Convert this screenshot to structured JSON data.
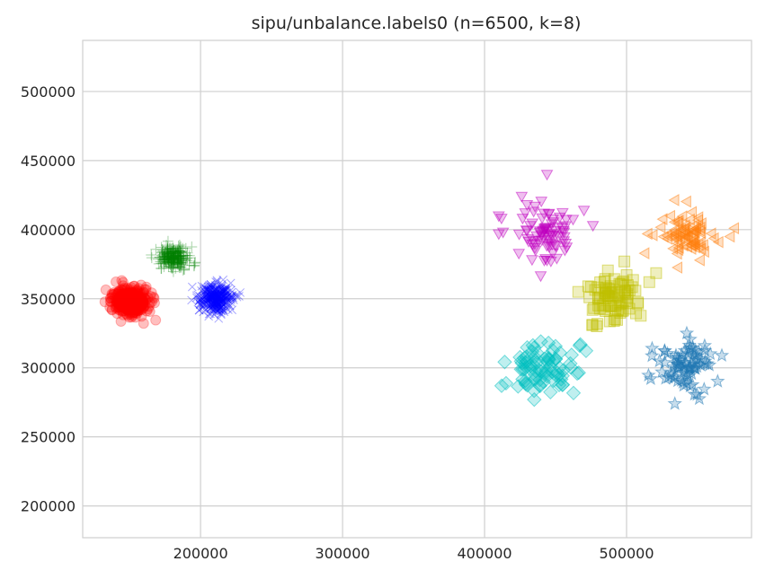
{
  "chart_data": {
    "type": "scatter",
    "title": "sipu/unbalance.labels0 (n=6500, k=8)",
    "xlabel": "",
    "ylabel": "",
    "xlim": [
      117000,
      588000
    ],
    "ylim": [
      177000,
      537000
    ],
    "x_ticks": [
      200000,
      300000,
      400000,
      500000
    ],
    "y_ticks": [
      200000,
      250000,
      300000,
      350000,
      400000,
      450000,
      500000
    ],
    "x_tick_labels": [
      "200000",
      "300000",
      "400000",
      "500000"
    ],
    "y_tick_labels": [
      "200000",
      "250000",
      "300000",
      "350000",
      "400000",
      "450000",
      "500000"
    ],
    "grid": true,
    "legend": "none",
    "clusters": [
      {
        "marker": "circle",
        "color": "#ff0000",
        "center": [
          151000,
          348000
        ],
        "spread": [
          6500,
          5000
        ],
        "points_drawn": 340
      },
      {
        "marker": "plus",
        "color": "#008000",
        "center": [
          181000,
          380000
        ],
        "spread": [
          5500,
          4300
        ],
        "points_drawn": 220
      },
      {
        "marker": "x",
        "color": "#0000ff",
        "center": [
          211000,
          350000
        ],
        "spread": [
          6000,
          5000
        ],
        "points_drawn": 330
      },
      {
        "marker": "triangle-down",
        "color": "#bf00bf",
        "center": [
          441000,
          398000
        ],
        "spread": [
          11000,
          11000
        ],
        "points_drawn": 80
      },
      {
        "marker": "triangle-left",
        "color": "#ff7f0e",
        "center": [
          540000,
          397000
        ],
        "spread": [
          9500,
          8500
        ],
        "points_drawn": 80
      },
      {
        "marker": "square",
        "color": "#bfbf00",
        "center": [
          492000,
          350000
        ],
        "spread": [
          10500,
          10500
        ],
        "points_drawn": 80
      },
      {
        "marker": "diamond",
        "color": "#00bfbf",
        "center": [
          442000,
          300000
        ],
        "spread": [
          10500,
          10500
        ],
        "points_drawn": 80
      },
      {
        "marker": "star",
        "color": "#1f77b4",
        "center": [
          542000,
          302000
        ],
        "spread": [
          9000,
          9000
        ],
        "points_drawn": 80
      }
    ],
    "extra_points": [
      {
        "cluster": 3,
        "x": 444000,
        "y": 440000
      },
      {
        "cluster": 3,
        "x": 410000,
        "y": 410000
      },
      {
        "cluster": 3,
        "x": 410000,
        "y": 397000
      },
      {
        "cluster": 3,
        "x": 470000,
        "y": 414000
      },
      {
        "cluster": 3,
        "x": 443000,
        "y": 379000
      },
      {
        "cluster": 4,
        "x": 576000,
        "y": 401000
      },
      {
        "cluster": 4,
        "x": 573000,
        "y": 395000
      },
      {
        "cluster": 4,
        "x": 565000,
        "y": 391000
      },
      {
        "cluster": 4,
        "x": 515000,
        "y": 397000
      },
      {
        "cluster": 5,
        "x": 516000,
        "y": 362000
      },
      {
        "cluster": 5,
        "x": 473000,
        "y": 359000
      },
      {
        "cluster": 5,
        "x": 466000,
        "y": 355000
      },
      {
        "cluster": 5,
        "x": 479000,
        "y": 330000
      },
      {
        "cluster": 6,
        "x": 412000,
        "y": 287000
      },
      {
        "cluster": 6,
        "x": 467000,
        "y": 316000
      },
      {
        "cluster": 6,
        "x": 445000,
        "y": 318000
      },
      {
        "cluster": 6,
        "x": 435000,
        "y": 277000
      },
      {
        "cluster": 7,
        "x": 534000,
        "y": 274000
      },
      {
        "cluster": 7,
        "x": 518000,
        "y": 314000
      },
      {
        "cluster": 7,
        "x": 555000,
        "y": 316000
      },
      {
        "cluster": 7,
        "x": 517000,
        "y": 292000
      }
    ]
  }
}
